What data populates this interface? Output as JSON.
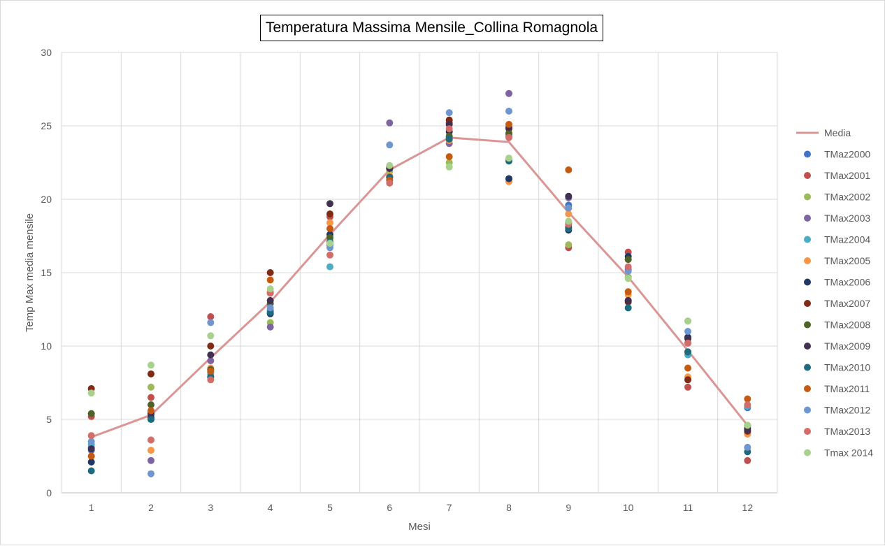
{
  "chart_data": {
    "type": "scatter",
    "title": "Temperatura  Massima Mensile_Collina Romagnola",
    "xlabel": "Mesi",
    "ylabel": "Temp Max media mensile",
    "categories": [
      "1",
      "2",
      "3",
      "4",
      "5",
      "6",
      "7",
      "8",
      "9",
      "10",
      "11",
      "12"
    ],
    "ylim": [
      0,
      30
    ],
    "yticks": [
      "0",
      "5",
      "10",
      "15",
      "20",
      "25",
      "30"
    ],
    "grid": true,
    "legend_position": "right",
    "line_series": {
      "name": "Media",
      "color": "#d99694",
      "values": [
        3.8,
        5.3,
        9.2,
        13.0,
        17.6,
        22.0,
        24.2,
        23.9,
        19.1,
        14.7,
        9.7,
        4.6
      ]
    },
    "series": [
      {
        "name": "TMaz2000",
        "color": "#4472c4",
        "values": [
          2.9,
          5.3,
          8.2,
          12.4,
          16.9,
          21.3,
          24.2,
          21.4,
          19.6,
          15.2,
          10.6,
          5.8
        ]
      },
      {
        "name": "TMax2001",
        "color": "#c0504d",
        "values": [
          5.2,
          6.5,
          12.0,
          13.6,
          18.8,
          22.1,
          25.2,
          24.3,
          16.7,
          16.4,
          7.2,
          2.2
        ]
      },
      {
        "name": "TMax2002",
        "color": "#9bbb59",
        "values": [
          5.4,
          7.2,
          8.4,
          11.6,
          17.3,
          21.9,
          22.5,
          22.7,
          16.9,
          14.7,
          11.7,
          4.5
        ]
      },
      {
        "name": "TMax2003",
        "color": "#8064a2",
        "values": [
          3.1,
          2.2,
          9.0,
          11.3,
          17.0,
          25.2,
          23.8,
          27.2,
          20.1,
          13.1,
          10.2,
          4.1
        ]
      },
      {
        "name": "TMaz2004",
        "color": "#4bacc6",
        "values": [
          3.3,
          5.5,
          8.1,
          12.5,
          15.4,
          21.5,
          24.1,
          24.4,
          19.4,
          15.9,
          9.4,
          5.9
        ]
      },
      {
        "name": "TMax2005",
        "color": "#f79646",
        "values": [
          2.5,
          2.9,
          8.5,
          13.7,
          18.4,
          21.6,
          24.0,
          21.2,
          19.0,
          13.5,
          7.9,
          4.0
        ]
      },
      {
        "name": "TMax2006",
        "color": "#1f3864",
        "values": [
          2.1,
          5.1,
          7.9,
          12.2,
          17.6,
          22.1,
          24.6,
          21.4,
          17.9,
          16.1,
          10.6,
          4.4
        ]
      },
      {
        "name": "TMax2007",
        "color": "#7f2b16",
        "values": [
          7.1,
          8.1,
          10.0,
          15.0,
          19.0,
          22.2,
          25.4,
          24.8,
          18.1,
          13.0,
          7.7,
          4.2
        ]
      },
      {
        "name": "TMax2008",
        "color": "#4f6228",
        "values": [
          5.4,
          6.0,
          8.4,
          12.9,
          17.4,
          21.5,
          24.3,
          24.5,
          18.4,
          15.9,
          9.6,
          4.6
        ]
      },
      {
        "name": "TMax2009",
        "color": "#403151",
        "values": [
          3.0,
          5.4,
          9.4,
          13.1,
          19.7,
          22.1,
          25.1,
          24.9,
          20.2,
          13.1,
          10.5,
          4.3
        ]
      },
      {
        "name": "TMax2010",
        "color": "#1e6a7f",
        "values": [
          1.5,
          5.0,
          7.9,
          12.3,
          17.1,
          21.5,
          24.1,
          22.6,
          18.0,
          12.6,
          9.6,
          2.8
        ]
      },
      {
        "name": "TMax2011",
        "color": "#c55a11",
        "values": [
          2.5,
          5.6,
          8.3,
          14.5,
          18.0,
          21.3,
          22.9,
          25.1,
          22.0,
          13.7,
          8.5,
          6.4
        ]
      },
      {
        "name": "TMax2012",
        "color": "#6f96d0",
        "values": [
          3.5,
          1.3,
          11.6,
          12.6,
          16.7,
          23.7,
          25.9,
          26.0,
          19.4,
          15.1,
          11.0,
          3.1
        ]
      },
      {
        "name": "TMax2013",
        "color": "#d36d6a",
        "values": [
          3.9,
          3.6,
          7.7,
          13.6,
          16.2,
          21.1,
          24.8,
          24.2,
          18.3,
          15.4,
          10.2,
          6.0
        ]
      },
      {
        "name": "Tmax 2014",
        "color": "#a9d18e",
        "values": [
          6.8,
          8.7,
          10.7,
          13.9,
          17.0,
          22.3,
          22.2,
          22.8,
          18.5,
          14.6,
          11.7,
          4.6
        ]
      }
    ]
  }
}
